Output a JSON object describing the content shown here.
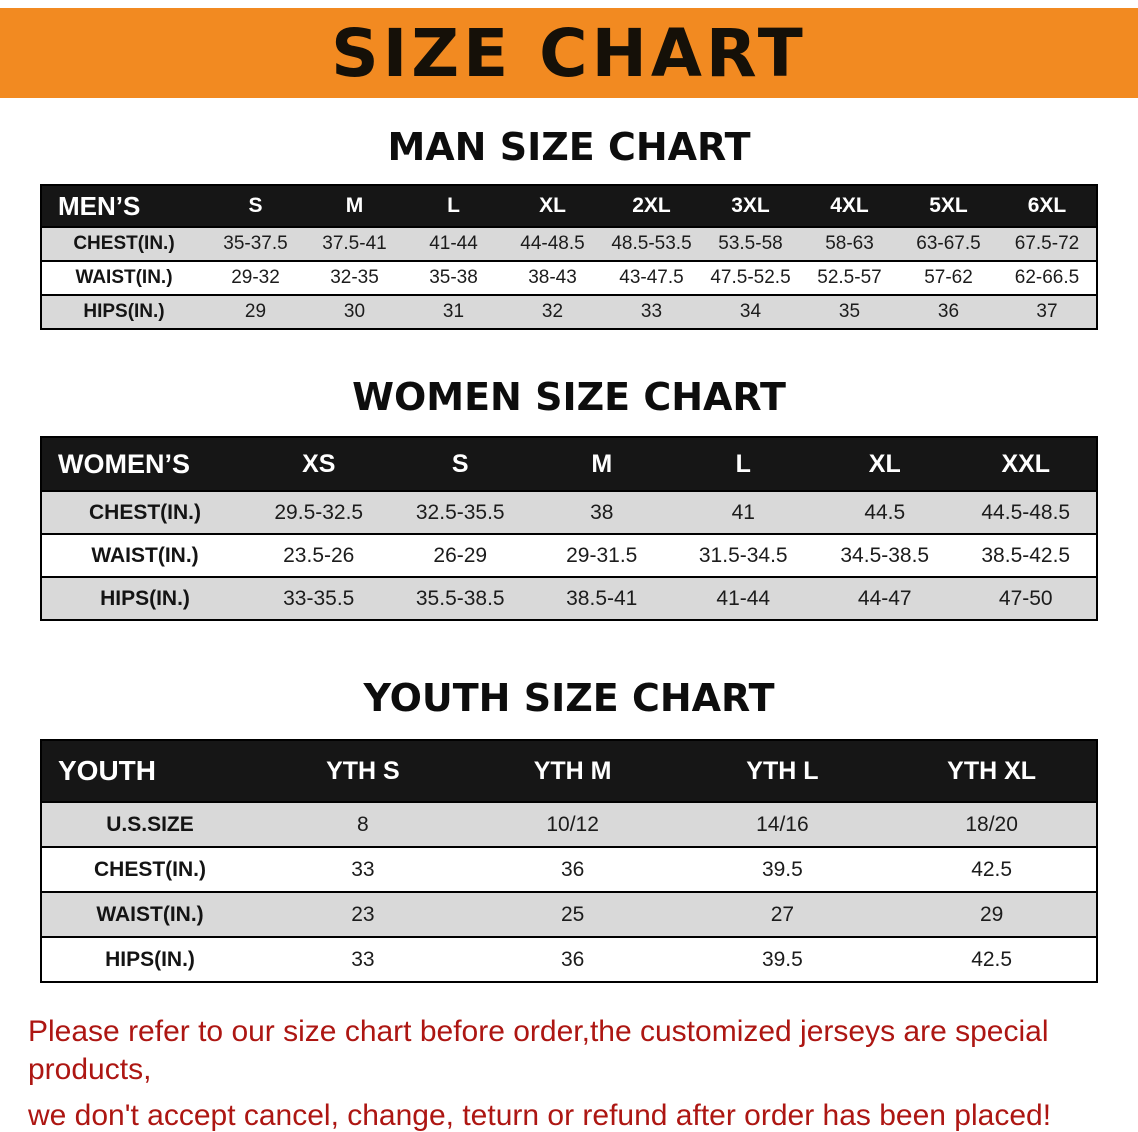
{
  "banner": {
    "title": "SIZE CHART",
    "bg_color": "#f28a21",
    "text_color": "#151008"
  },
  "sections": [
    {
      "heading": "MAN SIZE CHART",
      "table": {
        "header": [
          "MEN’S",
          "S",
          "M",
          "L",
          "XL",
          "2XL",
          "3XL",
          "4XL",
          "5XL",
          "6XL"
        ],
        "rows": [
          [
            "CHEST(IN.)",
            "35-37.5",
            "37.5-41",
            "41-44",
            "44-48.5",
            "48.5-53.5",
            "53.5-58",
            "58-63",
            "63-67.5",
            "67.5-72"
          ],
          [
            "WAIST(IN.)",
            "29-32",
            "32-35",
            "35-38",
            "38-43",
            "43-47.5",
            "47.5-52.5",
            "52.5-57",
            "57-62",
            "62-66.5"
          ],
          [
            "HIPS(IN.)",
            "29",
            "30",
            "31",
            "32",
            "33",
            "34",
            "35",
            "36",
            "37"
          ]
        ]
      }
    },
    {
      "heading": "WOMEN SIZE CHART",
      "table": {
        "header": [
          "WOMEN’S",
          "XS",
          "S",
          "M",
          "L",
          "XL",
          "XXL"
        ],
        "rows": [
          [
            "CHEST(IN.)",
            "29.5-32.5",
            "32.5-35.5",
            "38",
            "41",
            "44.5",
            "44.5-48.5"
          ],
          [
            "WAIST(IN.)",
            "23.5-26",
            "26-29",
            "29-31.5",
            "31.5-34.5",
            "34.5-38.5",
            "38.5-42.5"
          ],
          [
            "HIPS(IN.)",
            "33-35.5",
            "35.5-38.5",
            "38.5-41",
            "41-44",
            "44-47",
            "47-50"
          ]
        ]
      }
    },
    {
      "heading": "YOUTH SIZE CHART",
      "table": {
        "header": [
          "YOUTH",
          "YTH S",
          "YTH M",
          "YTH L",
          "YTH XL"
        ],
        "rows": [
          [
            "U.S.SIZE",
            "8",
            "10/12",
            "14/16",
            "18/20"
          ],
          [
            "CHEST(IN.)",
            "33",
            "36",
            "39.5",
            "42.5"
          ],
          [
            "WAIST(IN.)",
            "23",
            "25",
            "27",
            "29"
          ],
          [
            "HIPS(IN.)",
            "33",
            "36",
            "39.5",
            "42.5"
          ]
        ]
      }
    }
  ],
  "footer": {
    "line1": "Please refer to our size chart before order,the customized jerseys are special products,",
    "line2": "we don't accept cancel, change, teturn or refund after order has been placed!",
    "text_color": "#ad1612"
  }
}
